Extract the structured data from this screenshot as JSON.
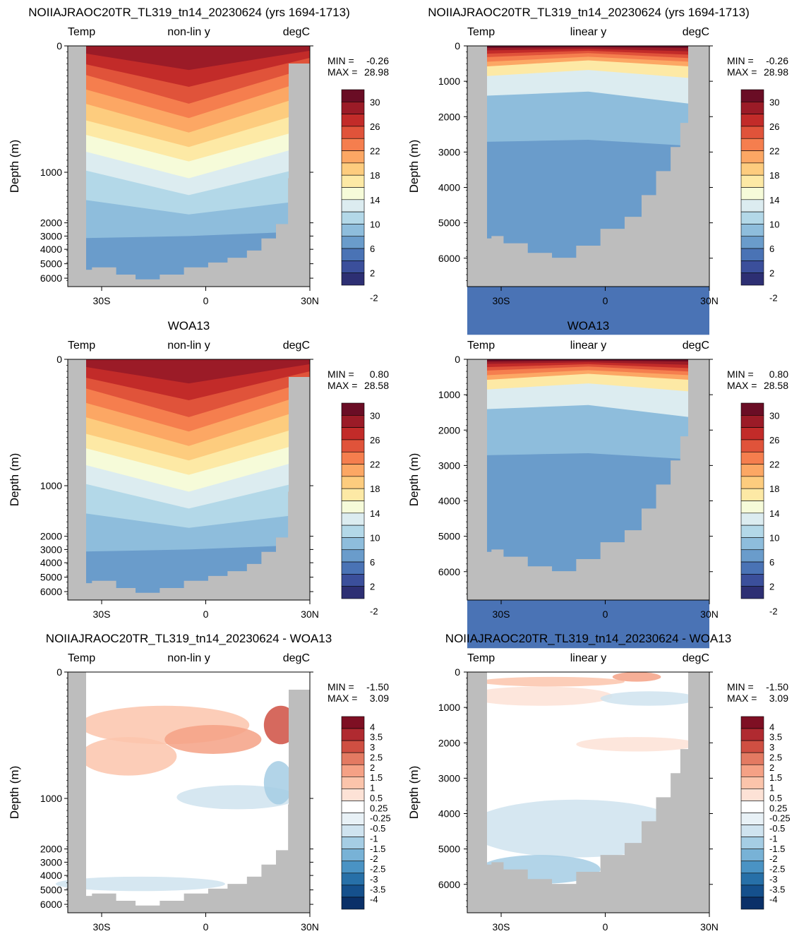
{
  "colors": {
    "land": "#bdbdbd",
    "temp_levels": [
      "#2d2f73",
      "#3b4f9b",
      "#4a73b5",
      "#6a9ccb",
      "#8ebddc",
      "#b3d8e8",
      "#dcecf0",
      "#f6fbd9",
      "#fde9a5",
      "#fdcc7e",
      "#fca764",
      "#f57e4e",
      "#e0533a",
      "#c22b29",
      "#9b1b27",
      "#6a0d25"
    ],
    "diff_levels": [
      "#0a3068",
      "#15508c",
      "#2770a8",
      "#4a93c4",
      "#78b2d6",
      "#a5cde4",
      "#cfe3ef",
      "#e8f1f6",
      "#ffffff",
      "#fde2d6",
      "#fbc4ab",
      "#f5a185",
      "#e37a62",
      "#cf4f42",
      "#b02a30",
      "#7e0f23"
    ]
  },
  "chart_data": [
    {
      "type": "heatmap",
      "title": "NOIIAJRAOC20TR_TL319_tn14_20230624 (yrs 1694-1713)",
      "left_label": "Temp",
      "center_label": "non-lin y",
      "right_label": "degC",
      "ylabel": "Depth (m)",
      "y_scale": "non-linear",
      "y_ticks": [
        "0",
        "1000",
        "2000",
        "3000",
        "4000",
        "5000",
        "6000"
      ],
      "x_ticks": [
        "30S",
        "0",
        "30N"
      ],
      "stats": {
        "min_label": "MIN =",
        "min_value": "-0.26",
        "max_label": "MAX =",
        "max_value": "28.98"
      },
      "colorbar_labels": [
        "30",
        "26",
        "22",
        "18",
        "14",
        "10",
        "6",
        "2",
        "-2"
      ]
    },
    {
      "type": "heatmap",
      "title": "NOIIAJRAOC20TR_TL319_tn14_20230624 (yrs 1694-1713)",
      "left_label": "Temp",
      "center_label": "linear y",
      "right_label": "degC",
      "ylabel": "Depth (m)",
      "y_scale": "linear",
      "y_ticks": [
        "0",
        "1000",
        "2000",
        "3000",
        "4000",
        "5000",
        "6000"
      ],
      "x_ticks": [
        "30S",
        "0",
        "30N"
      ],
      "stats": {
        "min_label": "MIN =",
        "min_value": "-0.26",
        "max_label": "MAX =",
        "max_value": "28.98"
      },
      "colorbar_labels": [
        "30",
        "26",
        "22",
        "18",
        "14",
        "10",
        "6",
        "2",
        "-2"
      ]
    },
    {
      "type": "heatmap",
      "title": "WOA13",
      "left_label": "Temp",
      "center_label": "non-lin y",
      "right_label": "degC",
      "ylabel": "Depth (m)",
      "y_scale": "non-linear",
      "y_ticks": [
        "0",
        "1000",
        "2000",
        "3000",
        "4000",
        "5000",
        "6000"
      ],
      "x_ticks": [
        "30S",
        "0",
        "30N"
      ],
      "stats": {
        "min_label": "MIN =",
        "min_value": "0.80",
        "max_label": "MAX =",
        "max_value": "28.58"
      },
      "colorbar_labels": [
        "30",
        "26",
        "22",
        "18",
        "14",
        "10",
        "6",
        "2",
        "-2"
      ]
    },
    {
      "type": "heatmap",
      "title": "WOA13",
      "left_label": "Temp",
      "center_label": "linear y",
      "right_label": "degC",
      "ylabel": "Depth (m)",
      "y_scale": "linear",
      "y_ticks": [
        "0",
        "1000",
        "2000",
        "3000",
        "4000",
        "5000",
        "6000"
      ],
      "x_ticks": [
        "30S",
        "0",
        "30N"
      ],
      "stats": {
        "min_label": "MIN =",
        "min_value": "0.80",
        "max_label": "MAX =",
        "max_value": "28.58"
      },
      "colorbar_labels": [
        "30",
        "26",
        "22",
        "18",
        "14",
        "10",
        "6",
        "2",
        "-2"
      ]
    },
    {
      "type": "heatmap",
      "title": "NOIIAJRAOC20TR_TL319_tn14_20230624 - WOA13",
      "left_label": "Temp",
      "center_label": "non-lin y",
      "right_label": "degC",
      "ylabel": "Depth (m)",
      "y_scale": "non-linear",
      "y_ticks": [
        "0",
        "1000",
        "2000",
        "3000",
        "4000",
        "5000",
        "6000"
      ],
      "x_ticks": [
        "30S",
        "0",
        "30N"
      ],
      "stats": {
        "min_label": "MIN =",
        "min_value": "-1.50",
        "max_label": "MAX =",
        "max_value": "3.09"
      },
      "colorbar_labels": [
        "4",
        "3.5",
        "3",
        "2.5",
        "2",
        "1.5",
        "1",
        "0.5",
        "0.25",
        "-0.25",
        "-0.5",
        "-1",
        "-1.5",
        "-2",
        "-2.5",
        "-3",
        "-3.5",
        "-4"
      ]
    },
    {
      "type": "heatmap",
      "title": "NOIIAJRAOC20TR_TL319_tn14_20230624 - WOA13",
      "left_label": "Temp",
      "center_label": "linear y",
      "right_label": "degC",
      "ylabel": "Depth (m)",
      "y_scale": "linear",
      "y_ticks": [
        "0",
        "1000",
        "2000",
        "3000",
        "4000",
        "5000",
        "6000"
      ],
      "x_ticks": [
        "30S",
        "0",
        "30N"
      ],
      "stats": {
        "min_label": "MIN =",
        "min_value": "-1.50",
        "max_label": "MAX =",
        "max_value": "3.09"
      },
      "colorbar_labels": [
        "4",
        "3.5",
        "3",
        "2.5",
        "2",
        "1.5",
        "1",
        "0.5",
        "0.25",
        "-0.25",
        "-0.5",
        "-1",
        "-1.5",
        "-2",
        "-2.5",
        "-3",
        "-3.5",
        "-4"
      ]
    }
  ]
}
